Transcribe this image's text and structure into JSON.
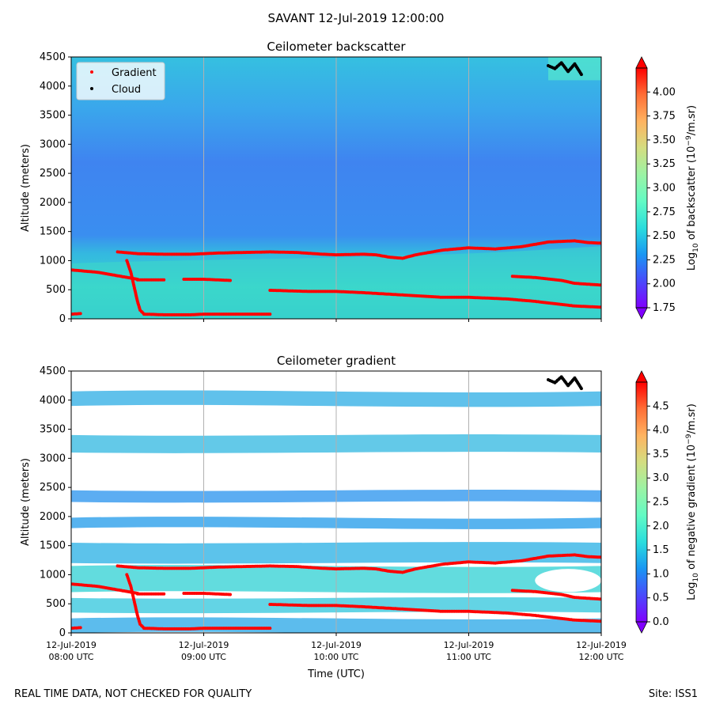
{
  "figure": {
    "suptitle": "SAVANT 12-Jul-2019 12:00:00",
    "footer_left": "REAL TIME DATA, NOT CHECKED FOR QUALITY",
    "footer_right": "Site: ISS1"
  },
  "chart_data": [
    {
      "type": "heatmap",
      "title": "Ceilometer backscatter",
      "ylabel": "Altitude (meters)",
      "xlabel": "",
      "ylim": [
        0,
        4500
      ],
      "yticks": [
        0,
        500,
        1000,
        1500,
        2000,
        2500,
        3000,
        3500,
        4000,
        4500
      ],
      "xlim_hours": [
        8.0,
        12.0
      ],
      "xticks_hours": [
        8,
        9,
        10,
        11,
        12
      ],
      "xtick_labels": [],
      "colorbar": {
        "label": "Log10 of backscatter (10^-9/m.sr)",
        "label_parts": [
          "Log",
          "10",
          " of backscatter (10",
          "−9",
          "/m.sr)"
        ],
        "range": [
          1.75,
          4.25
        ],
        "ticks": [
          "1.75",
          "2.00",
          "2.25",
          "2.50",
          "2.75",
          "3.00",
          "3.25",
          "3.50",
          "3.75",
          "4.00"
        ]
      },
      "legend": {
        "position": "upper-left",
        "entries": [
          {
            "label": "Gradient",
            "marker": "dot",
            "color": "#ff0000"
          },
          {
            "label": "Cloud",
            "marker": "dot",
            "color": "#000000"
          }
        ]
      },
      "series": [
        {
          "name": "Gradient layer upper",
          "color": "#ff0000",
          "x": [
            8.35,
            8.5,
            8.7,
            8.9,
            9.1,
            9.3,
            9.5,
            9.7,
            9.9,
            10.0,
            10.2,
            10.3,
            10.4,
            10.5,
            10.6,
            10.8,
            10.9,
            11.0,
            11.2,
            11.4,
            11.6,
            11.8,
            11.9,
            12.0
          ],
          "y": [
            1150,
            1120,
            1110,
            1110,
            1130,
            1140,
            1150,
            1140,
            1110,
            1100,
            1110,
            1100,
            1060,
            1040,
            1100,
            1180,
            1200,
            1220,
            1200,
            1240,
            1320,
            1340,
            1310,
            1300
          ]
        },
        {
          "name": "Gradient layer lower-left",
          "color": "#ff0000",
          "x": [
            8.0,
            8.1,
            8.2,
            8.3,
            8.4,
            8.5
          ],
          "y": [
            840,
            820,
            800,
            760,
            720,
            680
          ]
        },
        {
          "name": "Gradient layer descending",
          "color": "#ff0000",
          "x": [
            8.42,
            8.45,
            8.48,
            8.5,
            8.52,
            8.55
          ],
          "y": [
            1000,
            800,
            500,
            300,
            150,
            80
          ]
        },
        {
          "name": "Gradient segment A",
          "color": "#ff0000",
          "x": [
            8.5,
            8.7
          ],
          "y": [
            670,
            670
          ]
        },
        {
          "name": "Gradient segment B",
          "color": "#ff0000",
          "x": [
            8.85,
            9.0,
            9.2
          ],
          "y": [
            680,
            680,
            660
          ]
        },
        {
          "name": "Gradient surface",
          "color": "#ff0000",
          "x": [
            8.55,
            8.7,
            8.9,
            9.0,
            9.2,
            9.5
          ],
          "y": [
            80,
            70,
            70,
            80,
            80,
            80
          ]
        },
        {
          "name": "Gradient surface start",
          "color": "#ff0000",
          "x": [
            8.0,
            8.07
          ],
          "y": [
            80,
            90
          ]
        },
        {
          "name": "Gradient layer middle",
          "color": "#ff0000",
          "x": [
            9.5,
            9.8,
            10.0,
            10.2,
            10.5,
            10.8,
            11.0,
            11.3,
            11.5,
            11.8,
            12.0
          ],
          "y": [
            490,
            470,
            470,
            450,
            410,
            370,
            370,
            340,
            300,
            220,
            200
          ]
        },
        {
          "name": "Gradient layer right",
          "color": "#ff0000",
          "x": [
            11.33,
            11.5,
            11.7,
            11.8,
            12.0
          ],
          "y": [
            730,
            710,
            660,
            610,
            580
          ]
        },
        {
          "name": "Cloud",
          "color": "#000000",
          "x": [
            11.6,
            11.65,
            11.7,
            11.75,
            11.8,
            11.85
          ],
          "y": [
            4350,
            4300,
            4400,
            4250,
            4380,
            4200
          ]
        }
      ]
    },
    {
      "type": "heatmap",
      "title": "Ceilometer gradient",
      "ylabel": "Altitude (meters)",
      "xlabel": "Time (UTC)",
      "ylim": [
        0,
        4500
      ],
      "yticks": [
        0,
        500,
        1000,
        1500,
        2000,
        2500,
        3000,
        3500,
        4000,
        4500
      ],
      "xlim_hours": [
        8.0,
        12.0
      ],
      "xticks_hours": [
        8,
        9,
        10,
        11,
        12
      ],
      "xtick_labels": [
        {
          "date": "12-Jul-2019",
          "time": "08:00 UTC"
        },
        {
          "date": "12-Jul-2019",
          "time": "09:00 UTC"
        },
        {
          "date": "12-Jul-2019",
          "time": "10:00 UTC"
        },
        {
          "date": "12-Jul-2019",
          "time": "11:00 UTC"
        },
        {
          "date": "12-Jul-2019",
          "time": "12:00 UTC"
        }
      ],
      "colorbar": {
        "label": "Log10 of negative gradient (10^-9/m.sr)",
        "label_parts": [
          "Log",
          "10",
          " of negative gradient (10",
          "−9",
          "/m.sr)"
        ],
        "range": [
          0.0,
          5.0
        ],
        "ticks": [
          "0.0",
          "0.5",
          "1.0",
          "1.5",
          "2.0",
          "2.5",
          "3.0",
          "3.5",
          "4.0",
          "4.5"
        ]
      },
      "series": [
        {
          "name": "Gradient layer upper",
          "color": "#ff0000",
          "x": [
            8.35,
            8.5,
            8.7,
            8.9,
            9.1,
            9.3,
            9.5,
            9.7,
            9.9,
            10.0,
            10.2,
            10.3,
            10.4,
            10.5,
            10.6,
            10.8,
            10.9,
            11.0,
            11.2,
            11.4,
            11.6,
            11.8,
            11.9,
            12.0
          ],
          "y": [
            1150,
            1120,
            1110,
            1110,
            1130,
            1140,
            1150,
            1140,
            1110,
            1100,
            1110,
            1100,
            1060,
            1040,
            1100,
            1180,
            1200,
            1220,
            1200,
            1240,
            1320,
            1340,
            1310,
            1300
          ]
        },
        {
          "name": "Gradient layer lower-left",
          "color": "#ff0000",
          "x": [
            8.0,
            8.1,
            8.2,
            8.3,
            8.4,
            8.5
          ],
          "y": [
            840,
            820,
            800,
            760,
            720,
            680
          ]
        },
        {
          "name": "Gradient layer descending",
          "color": "#ff0000",
          "x": [
            8.42,
            8.45,
            8.48,
            8.5,
            8.52,
            8.55
          ],
          "y": [
            1000,
            800,
            500,
            300,
            150,
            80
          ]
        },
        {
          "name": "Gradient segment A",
          "color": "#ff0000",
          "x": [
            8.5,
            8.7
          ],
          "y": [
            670,
            670
          ]
        },
        {
          "name": "Gradient segment B",
          "color": "#ff0000",
          "x": [
            8.85,
            9.0,
            9.2
          ],
          "y": [
            680,
            680,
            660
          ]
        },
        {
          "name": "Gradient surface",
          "color": "#ff0000",
          "x": [
            8.55,
            8.7,
            8.9,
            9.0,
            9.2,
            9.5
          ],
          "y": [
            80,
            70,
            70,
            80,
            80,
            80
          ]
        },
        {
          "name": "Gradient surface start",
          "color": "#ff0000",
          "x": [
            8.0,
            8.07
          ],
          "y": [
            80,
            90
          ]
        },
        {
          "name": "Gradient layer middle",
          "color": "#ff0000",
          "x": [
            9.5,
            9.8,
            10.0,
            10.2,
            10.5,
            10.8,
            11.0,
            11.3,
            11.5,
            11.8,
            12.0
          ],
          "y": [
            490,
            470,
            470,
            450,
            410,
            370,
            370,
            340,
            300,
            220,
            200
          ]
        },
        {
          "name": "Gradient layer right",
          "color": "#ff0000",
          "x": [
            11.33,
            11.5,
            11.7,
            11.8,
            12.0
          ],
          "y": [
            730,
            710,
            660,
            610,
            580
          ]
        },
        {
          "name": "Cloud",
          "color": "#000000",
          "x": [
            11.6,
            11.65,
            11.7,
            11.75,
            11.8,
            11.85
          ],
          "y": [
            4350,
            4300,
            4400,
            4250,
            4380,
            4200
          ]
        }
      ]
    }
  ]
}
